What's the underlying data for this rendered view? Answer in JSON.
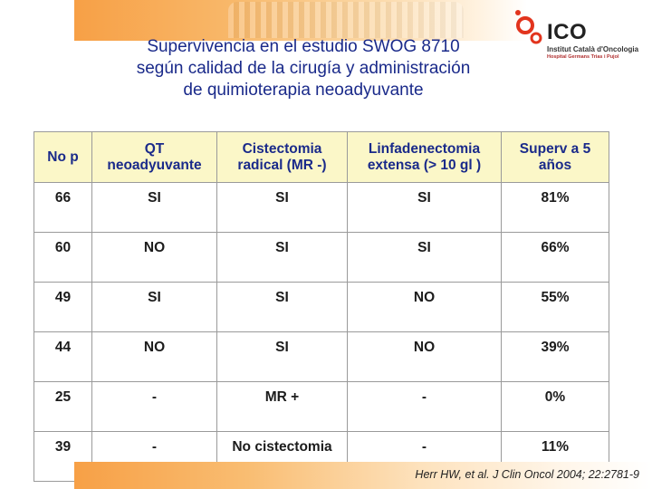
{
  "slide": {
    "title_lines": [
      "Supervivencia en el estudio SWOG 8710",
      "según calidad de la cirugía y administración",
      "de quimioterapia neoadyuvante"
    ],
    "citation": "Herr HW, et al. J Clin Oncol 2004; 22:2781-9"
  },
  "logo": {
    "name": "ICO",
    "subtitle": "Institut Català d'Oncologia",
    "hospital": "Hospital Germans Trias i Pujol",
    "colors": {
      "accent": "#e2341d",
      "text": "#222222"
    }
  },
  "table": {
    "headers": [
      [
        "No p"
      ],
      [
        "QT",
        "neoadyuvante"
      ],
      [
        "Cistectomia",
        "radical (MR -)"
      ],
      [
        "Linfadenectomia",
        "extensa (> 10 gl )"
      ],
      [
        "Superv a 5",
        "años"
      ]
    ],
    "rows": [
      [
        "66",
        "SI",
        "SI",
        "SI",
        "81%"
      ],
      [
        "60",
        "NO",
        "SI",
        "SI",
        "66%"
      ],
      [
        "49",
        "SI",
        "SI",
        "NO",
        "55%"
      ],
      [
        "44",
        "NO",
        "SI",
        "NO",
        "39%"
      ],
      [
        "25",
        "-",
        "MR +",
        "-",
        "0%"
      ],
      [
        "39",
        "-",
        "No cistectomia",
        "-",
        "11%"
      ]
    ]
  },
  "colors": {
    "title": "#1a2a8a",
    "header_bg": "#fbf7c8",
    "banner": "#f7a046"
  }
}
